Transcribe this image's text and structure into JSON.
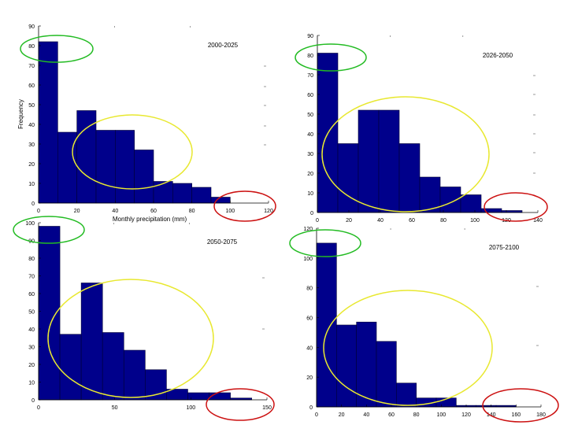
{
  "colors": {
    "bar": "#00008b",
    "bar_edge": "#000033",
    "green_marker": "#22bb22",
    "yellow_marker": "#e8e830",
    "red_marker": "#cc1111",
    "axis": "#000000"
  },
  "chart_data": [
    {
      "type": "bar",
      "title": "2000-2025",
      "ylabel": "Frequency",
      "xlabel": "Monthly precipitation (mm)",
      "bin_edges": [
        0,
        10,
        20,
        30,
        40,
        50,
        60,
        70,
        80,
        90,
        100,
        110,
        120
      ],
      "values": [
        82,
        36,
        47,
        37,
        37,
        27,
        11,
        10,
        8,
        3,
        0,
        0
      ],
      "xlim": [
        0,
        120
      ],
      "ylim": [
        0,
        90
      ],
      "xticks": [
        "0",
        "20",
        "40",
        "60",
        "80",
        "100",
        "120"
      ],
      "yticks": [
        "0",
        "10",
        "20",
        "30",
        "40",
        "50",
        "60",
        "70",
        "80",
        "90"
      ]
    },
    {
      "type": "bar",
      "title": "2026-2050",
      "ylabel": "",
      "xlabel": "",
      "bin_edges": [
        0,
        13,
        26,
        39,
        52,
        65,
        78,
        91,
        104,
        117,
        130
      ],
      "values": [
        81,
        35,
        52,
        52,
        35,
        18,
        13,
        9,
        2,
        1
      ],
      "xlim": [
        0,
        140
      ],
      "ylim": [
        0,
        90
      ],
      "xticks": [
        "0",
        "20",
        "40",
        "60",
        "80",
        "100",
        "120",
        "140"
      ],
      "yticks": [
        "0",
        "10",
        "20",
        "30",
        "40",
        "50",
        "60",
        "70",
        "80",
        "90"
      ]
    },
    {
      "type": "bar",
      "title": "2050-2075",
      "ylabel": "",
      "xlabel": "",
      "bin_edges": [
        0,
        14,
        28,
        42,
        56,
        70,
        84,
        98,
        112,
        126,
        140
      ],
      "values": [
        98,
        37,
        66,
        38,
        28,
        17,
        6,
        4,
        4,
        1
      ],
      "xlim": [
        0,
        150
      ],
      "ylim": [
        0,
        100
      ],
      "xticks": [
        "0",
        "50",
        "100",
        "150"
      ],
      "yticks": [
        "0",
        "10",
        "20",
        "30",
        "40",
        "50",
        "60",
        "70",
        "80",
        "90",
        "100"
      ]
    },
    {
      "type": "bar",
      "title": "2075-2100",
      "ylabel": "",
      "xlabel": "",
      "bin_edges": [
        0,
        16,
        32,
        48,
        64,
        80,
        96,
        112,
        128,
        144,
        160
      ],
      "values": [
        110,
        55,
        57,
        44,
        16,
        6,
        6,
        1,
        1,
        1
      ],
      "xlim": [
        0,
        180
      ],
      "ylim": [
        0,
        120
      ],
      "xticks": [
        "0",
        "20",
        "40",
        "60",
        "80",
        "100",
        "120",
        "140",
        "160",
        "180"
      ],
      "yticks": [
        "0",
        "20",
        "40",
        "60",
        "80",
        "100",
        "120"
      ]
    }
  ]
}
